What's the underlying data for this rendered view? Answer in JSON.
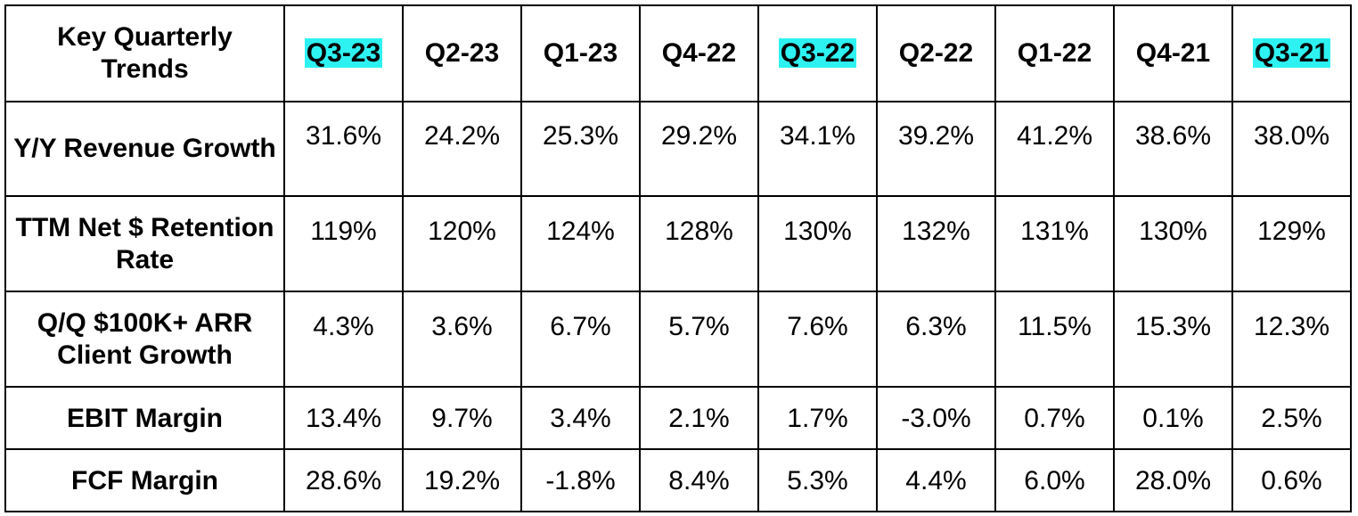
{
  "table": {
    "corner_label": "Key Quarterly Trends",
    "highlight_color": "#2ef2f2",
    "columns": [
      {
        "label": "Q3-23",
        "highlighted": true
      },
      {
        "label": "Q2-23",
        "highlighted": false
      },
      {
        "label": "Q1-23",
        "highlighted": false
      },
      {
        "label": "Q4-22",
        "highlighted": false
      },
      {
        "label": "Q3-22",
        "highlighted": true
      },
      {
        "label": "Q2-22",
        "highlighted": false
      },
      {
        "label": "Q1-22",
        "highlighted": false
      },
      {
        "label": "Q4-21",
        "highlighted": false
      },
      {
        "label": "Q3-21",
        "highlighted": true
      }
    ],
    "rows": [
      {
        "label": "Y/Y Revenue Growth",
        "values": [
          "31.6%",
          "24.2%",
          "25.3%",
          "29.2%",
          "34.1%",
          "39.2%",
          "41.2%",
          "38.6%",
          "38.0%"
        ]
      },
      {
        "label": "TTM Net $ Retention Rate",
        "values": [
          "119%",
          "120%",
          "124%",
          "128%",
          "130%",
          "132%",
          "131%",
          "130%",
          "129%"
        ]
      },
      {
        "label": "Q/Q $100K+ ARR Client Growth",
        "values": [
          "4.3%",
          "3.6%",
          "6.7%",
          "5.7%",
          "7.6%",
          "6.3%",
          "11.5%",
          "15.3%",
          "12.3%"
        ]
      },
      {
        "label": "EBIT Margin",
        "values": [
          "13.4%",
          "9.7%",
          "3.4%",
          "2.1%",
          "1.7%",
          "-3.0%",
          "0.7%",
          "0.1%",
          "2.5%"
        ]
      },
      {
        "label": "FCF Margin",
        "values": [
          "28.6%",
          "19.2%",
          "-1.8%",
          "8.4%",
          "5.3%",
          "4.4%",
          "6.0%",
          "28.0%",
          "0.6%"
        ]
      }
    ]
  }
}
